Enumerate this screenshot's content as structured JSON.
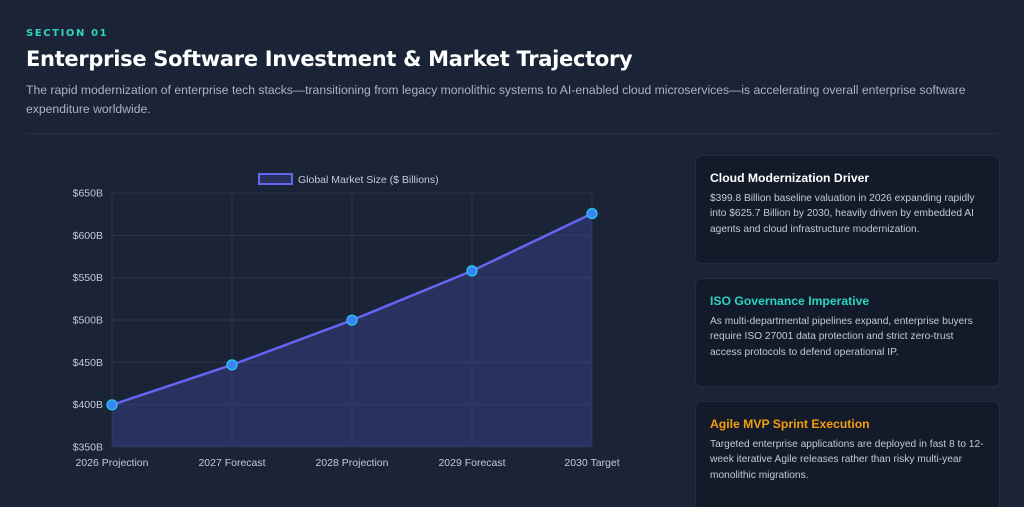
{
  "header": {
    "section_label": "SECTION 01",
    "title": "Enterprise Software Investment & Market Trajectory",
    "description": "The rapid modernization of enterprise tech stacks—transitioning from legacy monolithic systems to AI-enabled cloud microservices—is accelerating overall enterprise software expenditure worldwide."
  },
  "colors": {
    "background": "#1b2436",
    "accent_teal": "#2dd4bf",
    "accent_orange": "#f59e0b",
    "line": "#6366f1",
    "point": "#3b82f6"
  },
  "chart_data": {
    "type": "area",
    "categories": [
      "2026 Projection",
      "2027 Forecast",
      "2028 Projection",
      "2029 Forecast",
      "2030 Target"
    ],
    "series": [
      {
        "name": "Global Market Size ($ Billions)",
        "values": [
          399.8,
          447,
          499.8,
          558,
          625.7
        ]
      }
    ],
    "yticks": [
      "$650B",
      "$600B",
      "$550B",
      "$500B",
      "$450B",
      "$400B",
      "$350B"
    ],
    "ylim": [
      350,
      650
    ],
    "grid": true,
    "legend_position": "top-center",
    "title": "",
    "xlabel": "",
    "ylabel": ""
  },
  "cards": [
    {
      "title": "Cloud Modernization Driver",
      "body": "$399.8 Billion baseline valuation in 2026 expanding rapidly into $625.7 Billion by 2030, heavily driven by embedded AI agents and cloud infrastructure modernization.",
      "title_color": "#ffffff"
    },
    {
      "title": "ISO Governance Imperative",
      "body": "As multi-departmental pipelines expand, enterprise buyers require ISO 27001 data protection and strict zero-trust access protocols to defend operational IP.",
      "title_color": "#2dd4bf"
    },
    {
      "title": "Agile MVP Sprint Execution",
      "body": "Targeted enterprise applications are deployed in fast 8 to 12-week iterative Agile releases rather than risky multi-year monolithic migrations.",
      "title_color": "#f59e0b"
    }
  ]
}
